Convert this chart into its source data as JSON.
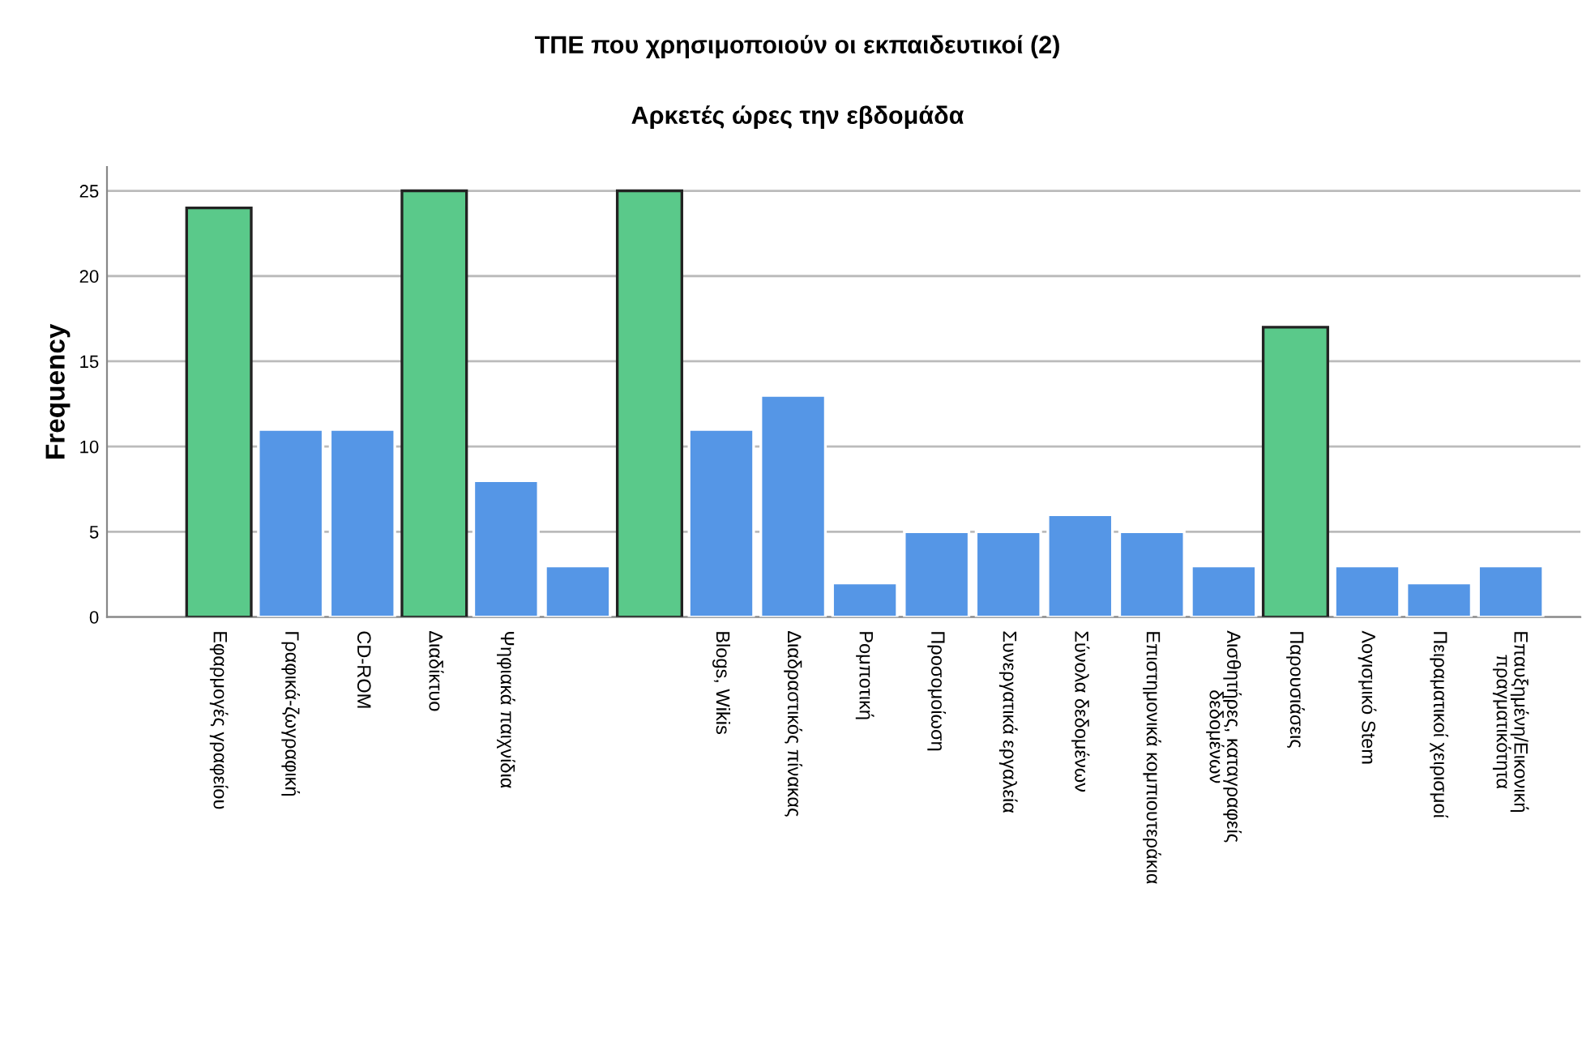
{
  "chart_data": {
    "type": "bar",
    "title": "ΤΠΕ που χρησιμοποιούν οι εκπαιδευτικοί (2)",
    "subtitle": "Αρκετές ώρες την εβδομάδα",
    "ylabel": "Frequency",
    "categories": [
      "Εφαρμογές γραφείου",
      "Γραφικά-ζωγραφική",
      "CD-ROM",
      "Διαδίκτυο",
      "Ψηφιακά παιχνίδια",
      null,
      null,
      "Blogs, Wikis",
      "Διαδραστικός πίνακας",
      "Ρομποτική",
      "Προσομοίωση",
      "Συνεργατικά εργαλεία",
      "Σύνολα δεδομένων",
      "Επιστημονικά κομπιουτεράκια",
      "Αισθητήρες, καταγραφείς\nδεδομένων",
      "Παρουσιάσεις",
      "Λογισμικό Stem",
      "Πειραματικοί χειρισμοί",
      "Επαυξημένη/Εικονική\nπραγματικότητα"
    ],
    "values": [
      24,
      11,
      11,
      25,
      8,
      3,
      25,
      11,
      13,
      2,
      5,
      5,
      6,
      5,
      3,
      17,
      3,
      2,
      3
    ],
    "colors": [
      "#5ac98a",
      "#5596e6",
      "#5596e6",
      "#5ac98a",
      "#5596e6",
      "#5596e6",
      "#5ac98a",
      "#5596e6",
      "#5596e6",
      "#5596e6",
      "#5596e6",
      "#5596e6",
      "#5596e6",
      "#5596e6",
      "#5596e6",
      "#5ac98a",
      "#5596e6",
      "#5596e6",
      "#5596e6"
    ],
    "ylim": [
      0,
      26.4
    ],
    "yticks": [
      0,
      5,
      10,
      15,
      20,
      25
    ],
    "grid": "y"
  }
}
